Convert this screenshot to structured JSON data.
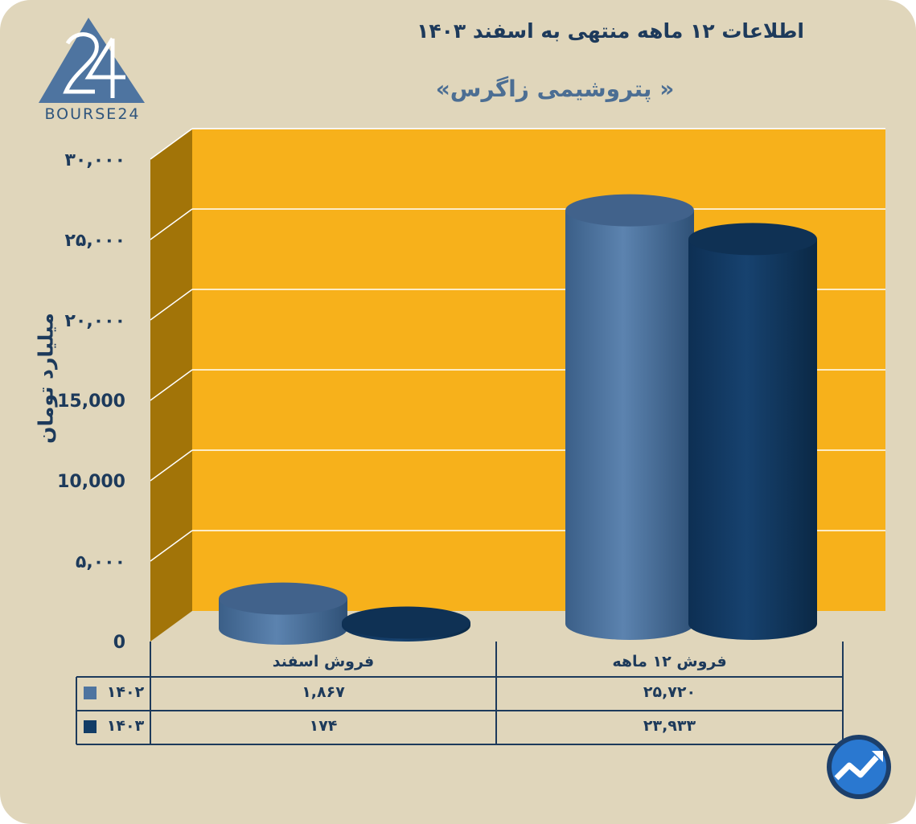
{
  "title": "اطلاعات ۱۲ ماهه منتهی به اسفند ۱۴۰۳",
  "subtitle": "« پتروشیمی زاگرس»",
  "logo": {
    "text": "BOURSE24",
    "icon": "bourse24-logo-icon"
  },
  "badge_icon": "trend-arrow-icon",
  "colors": {
    "background": "#e0d6bb",
    "plot": "#f7b11b",
    "wall_side": "#a27408",
    "series_1402": "#4e74a0",
    "series_1403": "#123c66",
    "text": "#1d3a5b"
  },
  "chart_data": {
    "type": "bar",
    "ylabel": "میلیارد تومان",
    "ylim": [
      0,
      30000
    ],
    "yticks": [
      0,
      5000,
      10000,
      15000,
      20000,
      25000,
      30000
    ],
    "ytick_labels": [
      "0",
      "۵,۰۰۰",
      "10,000",
      "15,000",
      "۲۰,۰۰۰",
      "۲۵,۰۰۰",
      "۳۰,۰۰۰"
    ],
    "categories": [
      "فروش اسفند",
      "فروش ۱۲ ماهه"
    ],
    "series": [
      {
        "name": "۱۴۰۲",
        "values": [
          1867,
          25720
        ],
        "labels": [
          "۱,۸۶۷",
          "۲۵,۷۲۰"
        ]
      },
      {
        "name": "۱۴۰۳",
        "values": [
          174,
          23933
        ],
        "labels": [
          "۱۷۴",
          "۲۳,۹۳۳"
        ]
      }
    ],
    "grid": true,
    "legend": "table-left"
  }
}
